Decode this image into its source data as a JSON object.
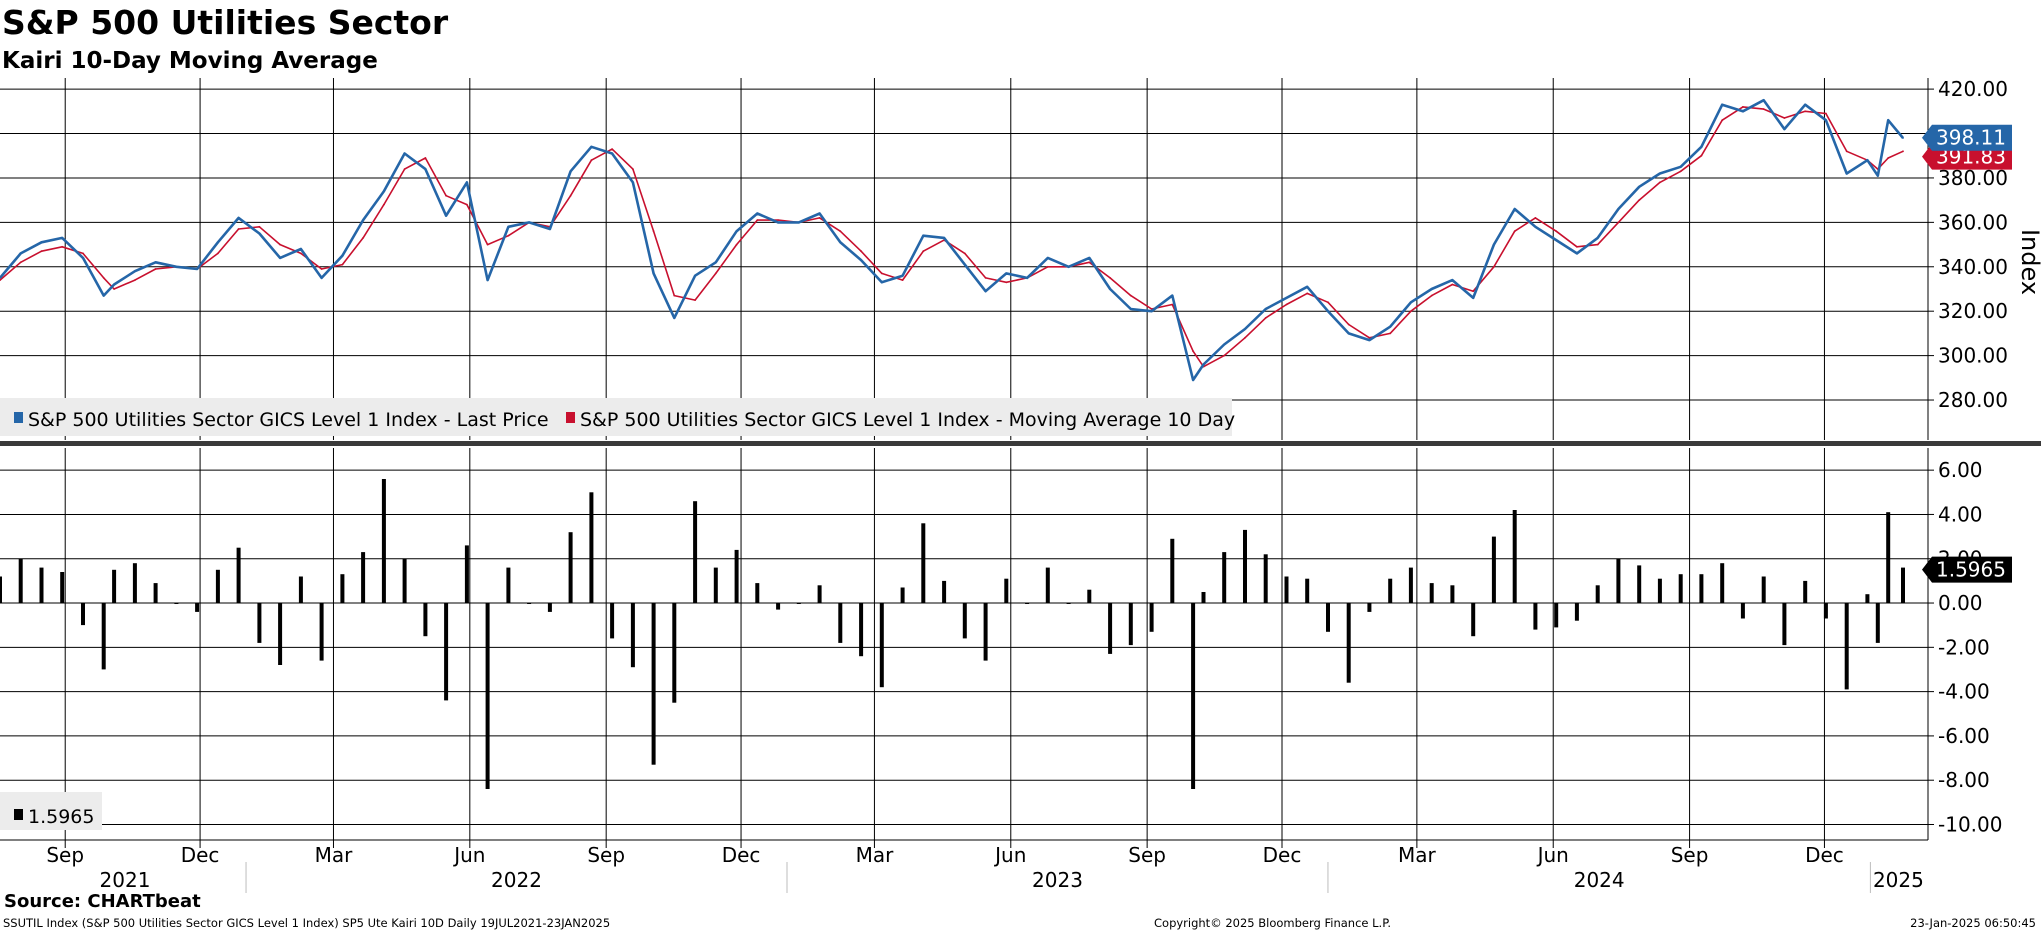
{
  "header": {
    "title": "S&P 500 Utilities Sector",
    "subtitle": "Kairi 10-Day Moving Average"
  },
  "footer": {
    "source": "Source: CHARTbeat",
    "info": "SSUTIL Index (S&P 500 Utilities Sector GICS Level 1 Index) SP5 Ute Kairi 10D  Daily 19JUL2021-23JAN2025",
    "copyright": "Copyright© 2025 Bloomberg Finance L.P.",
    "timestamp": "23-Jan-2025 06:50:45"
  },
  "colors": {
    "price": "#2566a8",
    "moving_average": "#c8102e",
    "bars": "#000000",
    "grid": "#000000",
    "legend_bg": "#ececec"
  },
  "chart_data": [
    {
      "type": "line",
      "panel": "upper",
      "ylabel": "Index",
      "ylim": [
        262,
        425
      ],
      "yticks": [
        "280.00",
        "300.00",
        "320.00",
        "340.00",
        "360.00",
        "380.00",
        "400.00",
        "420.00"
      ],
      "date_range": [
        "2021-07-19",
        "2025-01-23"
      ],
      "legend_position": "bottom-left",
      "last_price_label": "398.11",
      "ma_label": "391.83",
      "series": [
        {
          "name": "S&P 500 Utilities Sector GICS Level 1 Index - Last Price",
          "color": "#2566a8",
          "x": [
            "2021-07-19",
            "2021-08-02",
            "2021-08-16",
            "2021-08-30",
            "2021-09-13",
            "2021-09-27",
            "2021-10-04",
            "2021-10-18",
            "2021-11-01",
            "2021-11-15",
            "2021-11-29",
            "2021-12-13",
            "2021-12-27",
            "2022-01-10",
            "2022-01-24",
            "2022-02-07",
            "2022-02-21",
            "2022-03-07",
            "2022-03-21",
            "2022-04-04",
            "2022-04-18",
            "2022-05-02",
            "2022-05-16",
            "2022-05-30",
            "2022-06-13",
            "2022-06-27",
            "2022-07-11",
            "2022-07-25",
            "2022-08-08",
            "2022-08-22",
            "2022-09-05",
            "2022-09-19",
            "2022-10-03",
            "2022-10-17",
            "2022-10-31",
            "2022-11-14",
            "2022-11-28",
            "2022-12-12",
            "2022-12-26",
            "2023-01-09",
            "2023-01-23",
            "2023-02-06",
            "2023-02-20",
            "2023-03-06",
            "2023-03-20",
            "2023-04-03",
            "2023-04-17",
            "2023-05-01",
            "2023-05-15",
            "2023-05-29",
            "2023-06-12",
            "2023-06-26",
            "2023-07-10",
            "2023-07-24",
            "2023-08-07",
            "2023-08-21",
            "2023-09-04",
            "2023-09-18",
            "2023-10-02",
            "2023-10-09",
            "2023-10-23",
            "2023-11-06",
            "2023-11-20",
            "2023-12-04",
            "2023-12-18",
            "2024-01-01",
            "2024-01-15",
            "2024-01-29",
            "2024-02-12",
            "2024-02-26",
            "2024-03-11",
            "2024-03-25",
            "2024-04-08",
            "2024-04-22",
            "2024-05-06",
            "2024-05-20",
            "2024-06-03",
            "2024-06-17",
            "2024-07-01",
            "2024-07-15",
            "2024-07-29",
            "2024-08-12",
            "2024-08-26",
            "2024-09-09",
            "2024-09-23",
            "2024-10-07",
            "2024-10-21",
            "2024-11-04",
            "2024-11-18",
            "2024-12-02",
            "2024-12-16",
            "2024-12-30",
            "2025-01-06",
            "2025-01-13",
            "2025-01-23"
          ],
          "values": [
            335,
            346,
            351,
            353,
            344,
            327,
            332,
            338,
            342,
            340,
            339,
            351,
            362,
            355,
            344,
            348,
            335,
            345,
            361,
            374,
            391,
            384,
            363,
            378,
            334,
            358,
            360,
            357,
            383,
            394,
            391,
            378,
            337,
            317,
            336,
            342,
            356,
            364,
            360,
            360,
            364,
            351,
            343,
            333,
            336,
            354,
            353,
            341,
            329,
            337,
            335,
            344,
            340,
            344,
            330,
            321,
            320,
            327,
            289,
            296,
            305,
            312,
            321,
            326,
            331,
            320,
            310,
            307,
            313,
            324,
            330,
            334,
            326,
            350,
            366,
            358,
            352,
            346,
            353,
            366,
            376,
            382,
            385,
            394,
            413,
            410,
            415,
            402,
            413,
            406,
            382,
            388,
            381,
            406,
            398
          ]
        },
        {
          "name": "S&P 500 Utilities Sector GICS Level 1 Index - Moving Average 10 Day",
          "color": "#c8102e",
          "x": [
            "2021-07-19",
            "2021-08-02",
            "2021-08-16",
            "2021-08-30",
            "2021-09-13",
            "2021-09-27",
            "2021-10-04",
            "2021-10-18",
            "2021-11-01",
            "2021-11-15",
            "2021-11-29",
            "2021-12-13",
            "2021-12-27",
            "2022-01-10",
            "2022-01-24",
            "2022-02-07",
            "2022-02-21",
            "2022-03-07",
            "2022-03-21",
            "2022-04-04",
            "2022-04-18",
            "2022-05-02",
            "2022-05-16",
            "2022-05-30",
            "2022-06-13",
            "2022-06-27",
            "2022-07-11",
            "2022-07-25",
            "2022-08-08",
            "2022-08-22",
            "2022-09-05",
            "2022-09-19",
            "2022-10-03",
            "2022-10-17",
            "2022-10-31",
            "2022-11-14",
            "2022-11-28",
            "2022-12-12",
            "2022-12-26",
            "2023-01-09",
            "2023-01-23",
            "2023-02-06",
            "2023-02-20",
            "2023-03-06",
            "2023-03-20",
            "2023-04-03",
            "2023-04-17",
            "2023-05-01",
            "2023-05-15",
            "2023-05-29",
            "2023-06-12",
            "2023-06-26",
            "2023-07-10",
            "2023-07-24",
            "2023-08-07",
            "2023-08-21",
            "2023-09-04",
            "2023-09-18",
            "2023-10-02",
            "2023-10-09",
            "2023-10-23",
            "2023-11-06",
            "2023-11-20",
            "2023-12-04",
            "2023-12-18",
            "2024-01-01",
            "2024-01-15",
            "2024-01-29",
            "2024-02-12",
            "2024-02-26",
            "2024-03-11",
            "2024-03-25",
            "2024-04-08",
            "2024-04-22",
            "2024-05-06",
            "2024-05-20",
            "2024-06-03",
            "2024-06-17",
            "2024-07-01",
            "2024-07-15",
            "2024-07-29",
            "2024-08-12",
            "2024-08-26",
            "2024-09-09",
            "2024-09-23",
            "2024-10-07",
            "2024-10-21",
            "2024-11-04",
            "2024-11-18",
            "2024-12-02",
            "2024-12-16",
            "2024-12-30",
            "2025-01-06",
            "2025-01-13",
            "2025-01-23"
          ],
          "values": [
            334,
            342,
            347,
            349,
            346,
            335,
            330,
            334,
            339,
            340,
            339,
            346,
            357,
            358,
            350,
            346,
            339,
            341,
            353,
            368,
            384,
            389,
            372,
            368,
            350,
            354,
            360,
            358,
            372,
            388,
            393,
            384,
            356,
            327,
            325,
            337,
            350,
            361,
            361,
            360,
            362,
            356,
            347,
            337,
            334,
            347,
            352,
            346,
            335,
            333,
            335,
            340,
            340,
            342,
            335,
            327,
            321,
            323,
            302,
            295,
            300,
            308,
            317,
            323,
            328,
            324,
            314,
            308,
            310,
            320,
            327,
            332,
            329,
            340,
            356,
            362,
            356,
            349,
            350,
            360,
            370,
            378,
            383,
            390,
            406,
            412,
            411,
            407,
            410,
            409,
            392,
            388,
            384,
            389,
            392
          ]
        }
      ]
    },
    {
      "type": "bar",
      "panel": "lower",
      "title": "",
      "ylim": [
        -10.7,
        7.0
      ],
      "yticks": [
        "-10.00",
        "-8.00",
        "-6.00",
        "-4.00",
        "-2.00",
        "0.00",
        "2.00",
        "4.00",
        "6.00"
      ],
      "legend_position": "bottom-left",
      "last_value_label": "1.5965",
      "x": [
        "2021-07-19",
        "2021-08-02",
        "2021-08-16",
        "2021-08-30",
        "2021-09-13",
        "2021-09-27",
        "2021-10-04",
        "2021-10-18",
        "2021-11-01",
        "2021-11-15",
        "2021-11-29",
        "2021-12-13",
        "2021-12-27",
        "2022-01-10",
        "2022-01-24",
        "2022-02-07",
        "2022-02-21",
        "2022-03-07",
        "2022-03-21",
        "2022-04-04",
        "2022-04-18",
        "2022-05-02",
        "2022-05-16",
        "2022-05-30",
        "2022-06-13",
        "2022-06-27",
        "2022-07-11",
        "2022-07-25",
        "2022-08-08",
        "2022-08-22",
        "2022-09-05",
        "2022-09-19",
        "2022-10-03",
        "2022-10-17",
        "2022-10-31",
        "2022-11-14",
        "2022-11-28",
        "2022-12-12",
        "2022-12-26",
        "2023-01-09",
        "2023-01-23",
        "2023-02-06",
        "2023-02-20",
        "2023-03-06",
        "2023-03-20",
        "2023-04-03",
        "2023-04-17",
        "2023-05-01",
        "2023-05-15",
        "2023-05-29",
        "2023-06-12",
        "2023-06-26",
        "2023-07-10",
        "2023-07-24",
        "2023-08-07",
        "2023-08-21",
        "2023-09-04",
        "2023-09-18",
        "2023-10-02",
        "2023-10-09",
        "2023-10-23",
        "2023-11-06",
        "2023-11-20",
        "2023-12-04",
        "2023-12-18",
        "2024-01-01",
        "2024-01-15",
        "2024-01-29",
        "2024-02-12",
        "2024-02-26",
        "2024-03-11",
        "2024-03-25",
        "2024-04-08",
        "2024-04-22",
        "2024-05-06",
        "2024-05-20",
        "2024-06-03",
        "2024-06-17",
        "2024-07-01",
        "2024-07-15",
        "2024-07-29",
        "2024-08-12",
        "2024-08-26",
        "2024-09-09",
        "2024-09-23",
        "2024-10-07",
        "2024-10-21",
        "2024-11-04",
        "2024-11-18",
        "2024-12-02",
        "2024-12-16",
        "2024-12-30",
        "2025-01-06",
        "2025-01-13",
        "2025-01-23"
      ],
      "values": [
        1.2,
        2.0,
        1.6,
        1.4,
        -1.0,
        -3.0,
        1.5,
        1.8,
        0.9,
        0.0,
        -0.4,
        1.5,
        2.5,
        -1.8,
        -2.8,
        1.2,
        -2.6,
        1.3,
        2.3,
        5.6,
        2.0,
        -1.5,
        -4.4,
        2.6,
        -8.4,
        1.6,
        0.0,
        -0.4,
        3.2,
        5.0,
        -1.6,
        -2.9,
        -7.3,
        -4.5,
        4.6,
        1.6,
        2.4,
        0.9,
        -0.3,
        0.0,
        0.8,
        -1.8,
        -2.4,
        -3.8,
        0.7,
        3.6,
        1.0,
        -1.6,
        -2.6,
        1.1,
        0.0,
        1.6,
        0.0,
        0.6,
        -2.3,
        -1.9,
        -1.3,
        2.9,
        -8.4,
        0.5,
        2.3,
        3.3,
        2.2,
        1.2,
        1.1,
        -1.3,
        -3.6,
        -0.4,
        1.1,
        1.6,
        0.9,
        0.8,
        -1.5,
        3.0,
        4.2,
        -1.2,
        -1.1,
        -0.8,
        0.8,
        2.0,
        1.7,
        1.1,
        1.3,
        1.3,
        1.8,
        -0.7,
        1.2,
        -1.9,
        1.0,
        -0.7,
        -3.9,
        0.4,
        -1.8,
        4.1,
        1.6
      ]
    }
  ],
  "x_axis": {
    "month_labels": [
      {
        "date": "2021-09-01",
        "label": "Sep"
      },
      {
        "date": "2021-12-01",
        "label": "Dec"
      },
      {
        "date": "2022-03-01",
        "label": "Mar"
      },
      {
        "date": "2022-06-01",
        "label": "Jun"
      },
      {
        "date": "2022-09-01",
        "label": "Sep"
      },
      {
        "date": "2022-12-01",
        "label": "Dec"
      },
      {
        "date": "2023-03-01",
        "label": "Mar"
      },
      {
        "date": "2023-06-01",
        "label": "Jun"
      },
      {
        "date": "2023-09-01",
        "label": "Sep"
      },
      {
        "date": "2023-12-01",
        "label": "Dec"
      },
      {
        "date": "2024-03-01",
        "label": "Mar"
      },
      {
        "date": "2024-06-01",
        "label": "Jun"
      },
      {
        "date": "2024-09-01",
        "label": "Sep"
      },
      {
        "date": "2024-12-01",
        "label": "Dec"
      }
    ],
    "year_labels": [
      {
        "date": "2021-07-19",
        "label": "2021"
      },
      {
        "date": "2022-01-01",
        "label": "2022"
      },
      {
        "date": "2023-01-01",
        "label": "2023"
      },
      {
        "date": "2024-01-01",
        "label": "2024"
      },
      {
        "date": "2025-01-01",
        "label": "2025"
      }
    ]
  }
}
